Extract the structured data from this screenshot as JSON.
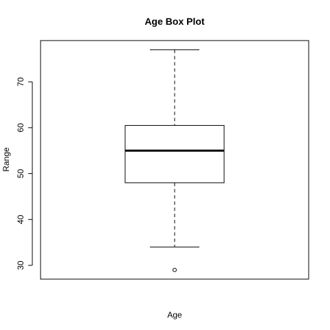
{
  "chart_data": {
    "type": "box",
    "title": "Age Box Plot",
    "xlabel": "Age",
    "ylabel": "Range",
    "ylim": [
      27,
      79
    ],
    "yticks": [
      30,
      40,
      50,
      60,
      70
    ],
    "grid": false,
    "series": [
      {
        "whisker_low": 34,
        "q1": 48,
        "median": 55,
        "q3": 60.5,
        "whisker_high": 77,
        "outliers": [
          29
        ]
      }
    ]
  }
}
